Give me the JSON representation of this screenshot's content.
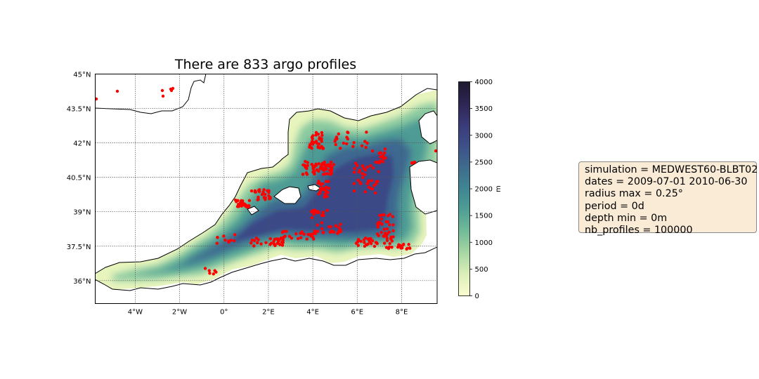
{
  "figure": {
    "title": "There are 833 argo profiles",
    "colorbar": {
      "unit": "m",
      "min": 0,
      "max": 4000,
      "tick_labels": [
        "0",
        "500",
        "1000",
        "1500",
        "2000",
        "2500",
        "3000",
        "3500",
        "4000"
      ],
      "colormap": [
        "#fcfdcf",
        "#dcefb8",
        "#a8d7a3",
        "#73bc98",
        "#4f9f95",
        "#3f8692",
        "#3f6c8d",
        "#3e5089",
        "#3a3a79",
        "#2d2552",
        "#1f1a2e"
      ]
    },
    "map": {
      "lon_range": [
        -5.8,
        9.6
      ],
      "lat_range": [
        35.0,
        45.0
      ],
      "lon_ticks": [
        {
          "value": -4,
          "label": "4°W"
        },
        {
          "value": -2,
          "label": "2°W"
        },
        {
          "value": 0,
          "label": "0°"
        },
        {
          "value": 2,
          "label": "2°E"
        },
        {
          "value": 4,
          "label": "4°E"
        },
        {
          "value": 6,
          "label": "6°E"
        },
        {
          "value": 8,
          "label": "8°E"
        }
      ],
      "lat_ticks": [
        {
          "value": 36,
          "label": "36°N"
        },
        {
          "value": 37.5,
          "label": "37.5°N"
        },
        {
          "value": 39,
          "label": "39°N"
        },
        {
          "value": 40.5,
          "label": "40.5°N"
        },
        {
          "value": 42,
          "label": "42°N"
        },
        {
          "value": 43.5,
          "label": "43.5°N"
        },
        {
          "value": 45,
          "label": "45°N"
        }
      ],
      "grid": true,
      "profile_color": "#ff0000",
      "coast_color": "#000000",
      "land_color": "#ffffff"
    }
  },
  "info": {
    "simulation": "simulation = MEDWEST60-BLBT02",
    "dates": "dates = 2009-07-01 2010-06-30",
    "radius": "radius max = 0.25°",
    "period": "period = 0d",
    "depth": "depth min = 0m",
    "profiles": "nb_profiles = 100000"
  }
}
